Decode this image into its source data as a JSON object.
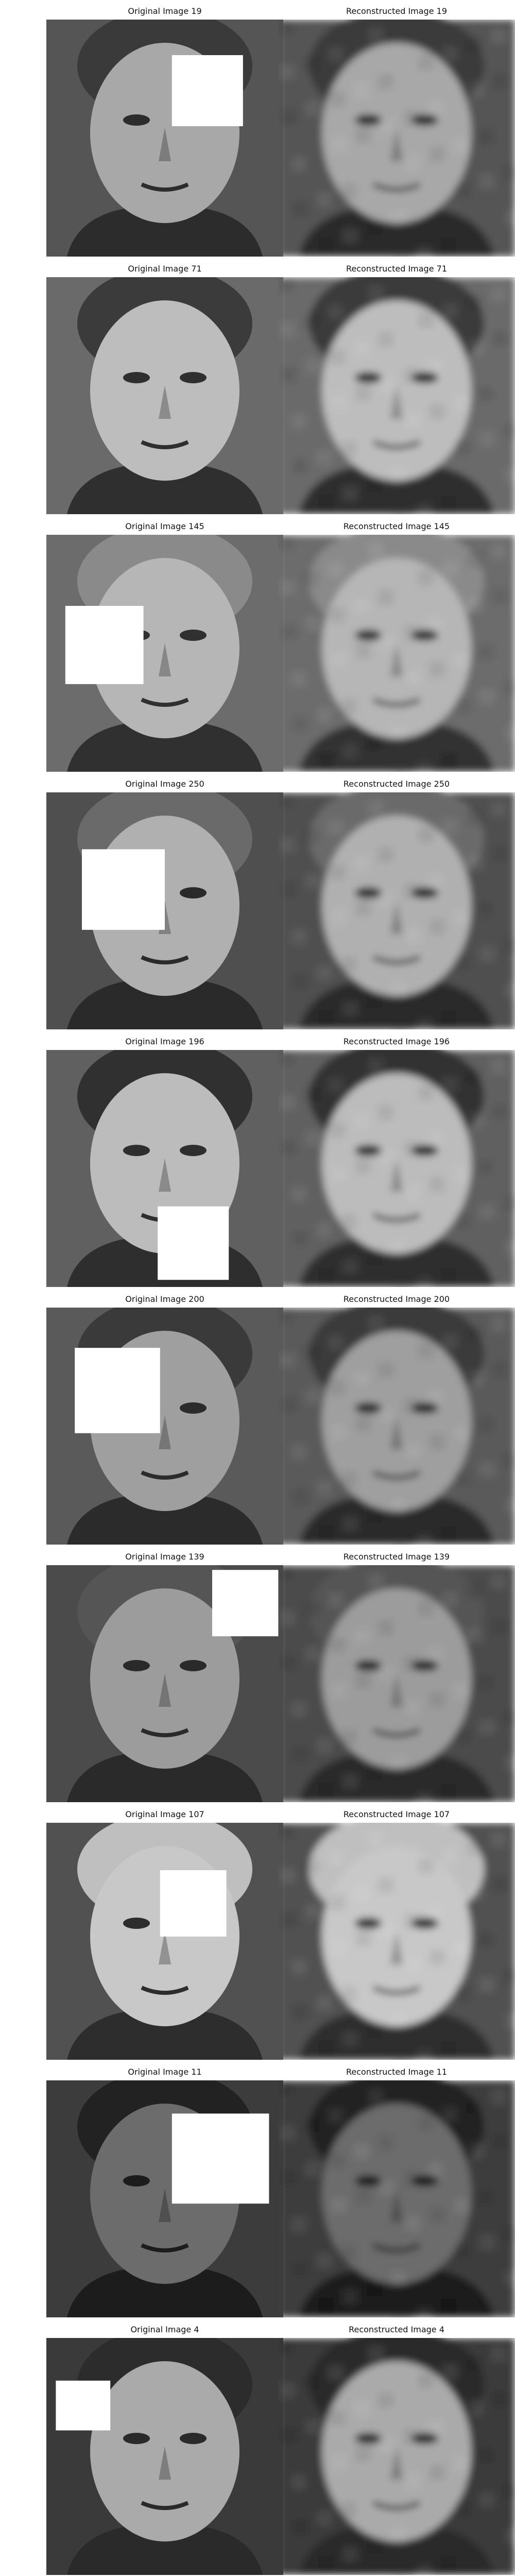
{
  "rows": [
    {
      "original_title": "Original Image 19",
      "reconstructed_title": "Reconstructed Image 19"
    },
    {
      "original_title": "Original Image 71",
      "reconstructed_title": "Reconstructed Image 71"
    },
    {
      "original_title": "Original Image 145",
      "reconstructed_title": "Reconstructed Image 145"
    },
    {
      "original_title": "Original Image 250",
      "reconstructed_title": "Reconstructed Image 250"
    },
    {
      "original_title": "Original Image 196",
      "reconstructed_title": "Reconstructed Image 196"
    },
    {
      "original_title": "Original Image 200",
      "reconstructed_title": "Reconstructed Image 200"
    },
    {
      "original_title": "Original Image 139",
      "reconstructed_title": "Reconstructed Image 139"
    },
    {
      "original_title": "Original Image 107",
      "reconstructed_title": "Reconstructed Image 107"
    },
    {
      "original_title": "Original Image 11",
      "reconstructed_title": "Reconstructed Image 11"
    },
    {
      "original_title": "Original Image 4",
      "reconstructed_title": "Reconstructed Image 4"
    }
  ],
  "colors": {
    "background": "#ffffff",
    "title_text": "#111111",
    "mask": "#ffffff"
  }
}
